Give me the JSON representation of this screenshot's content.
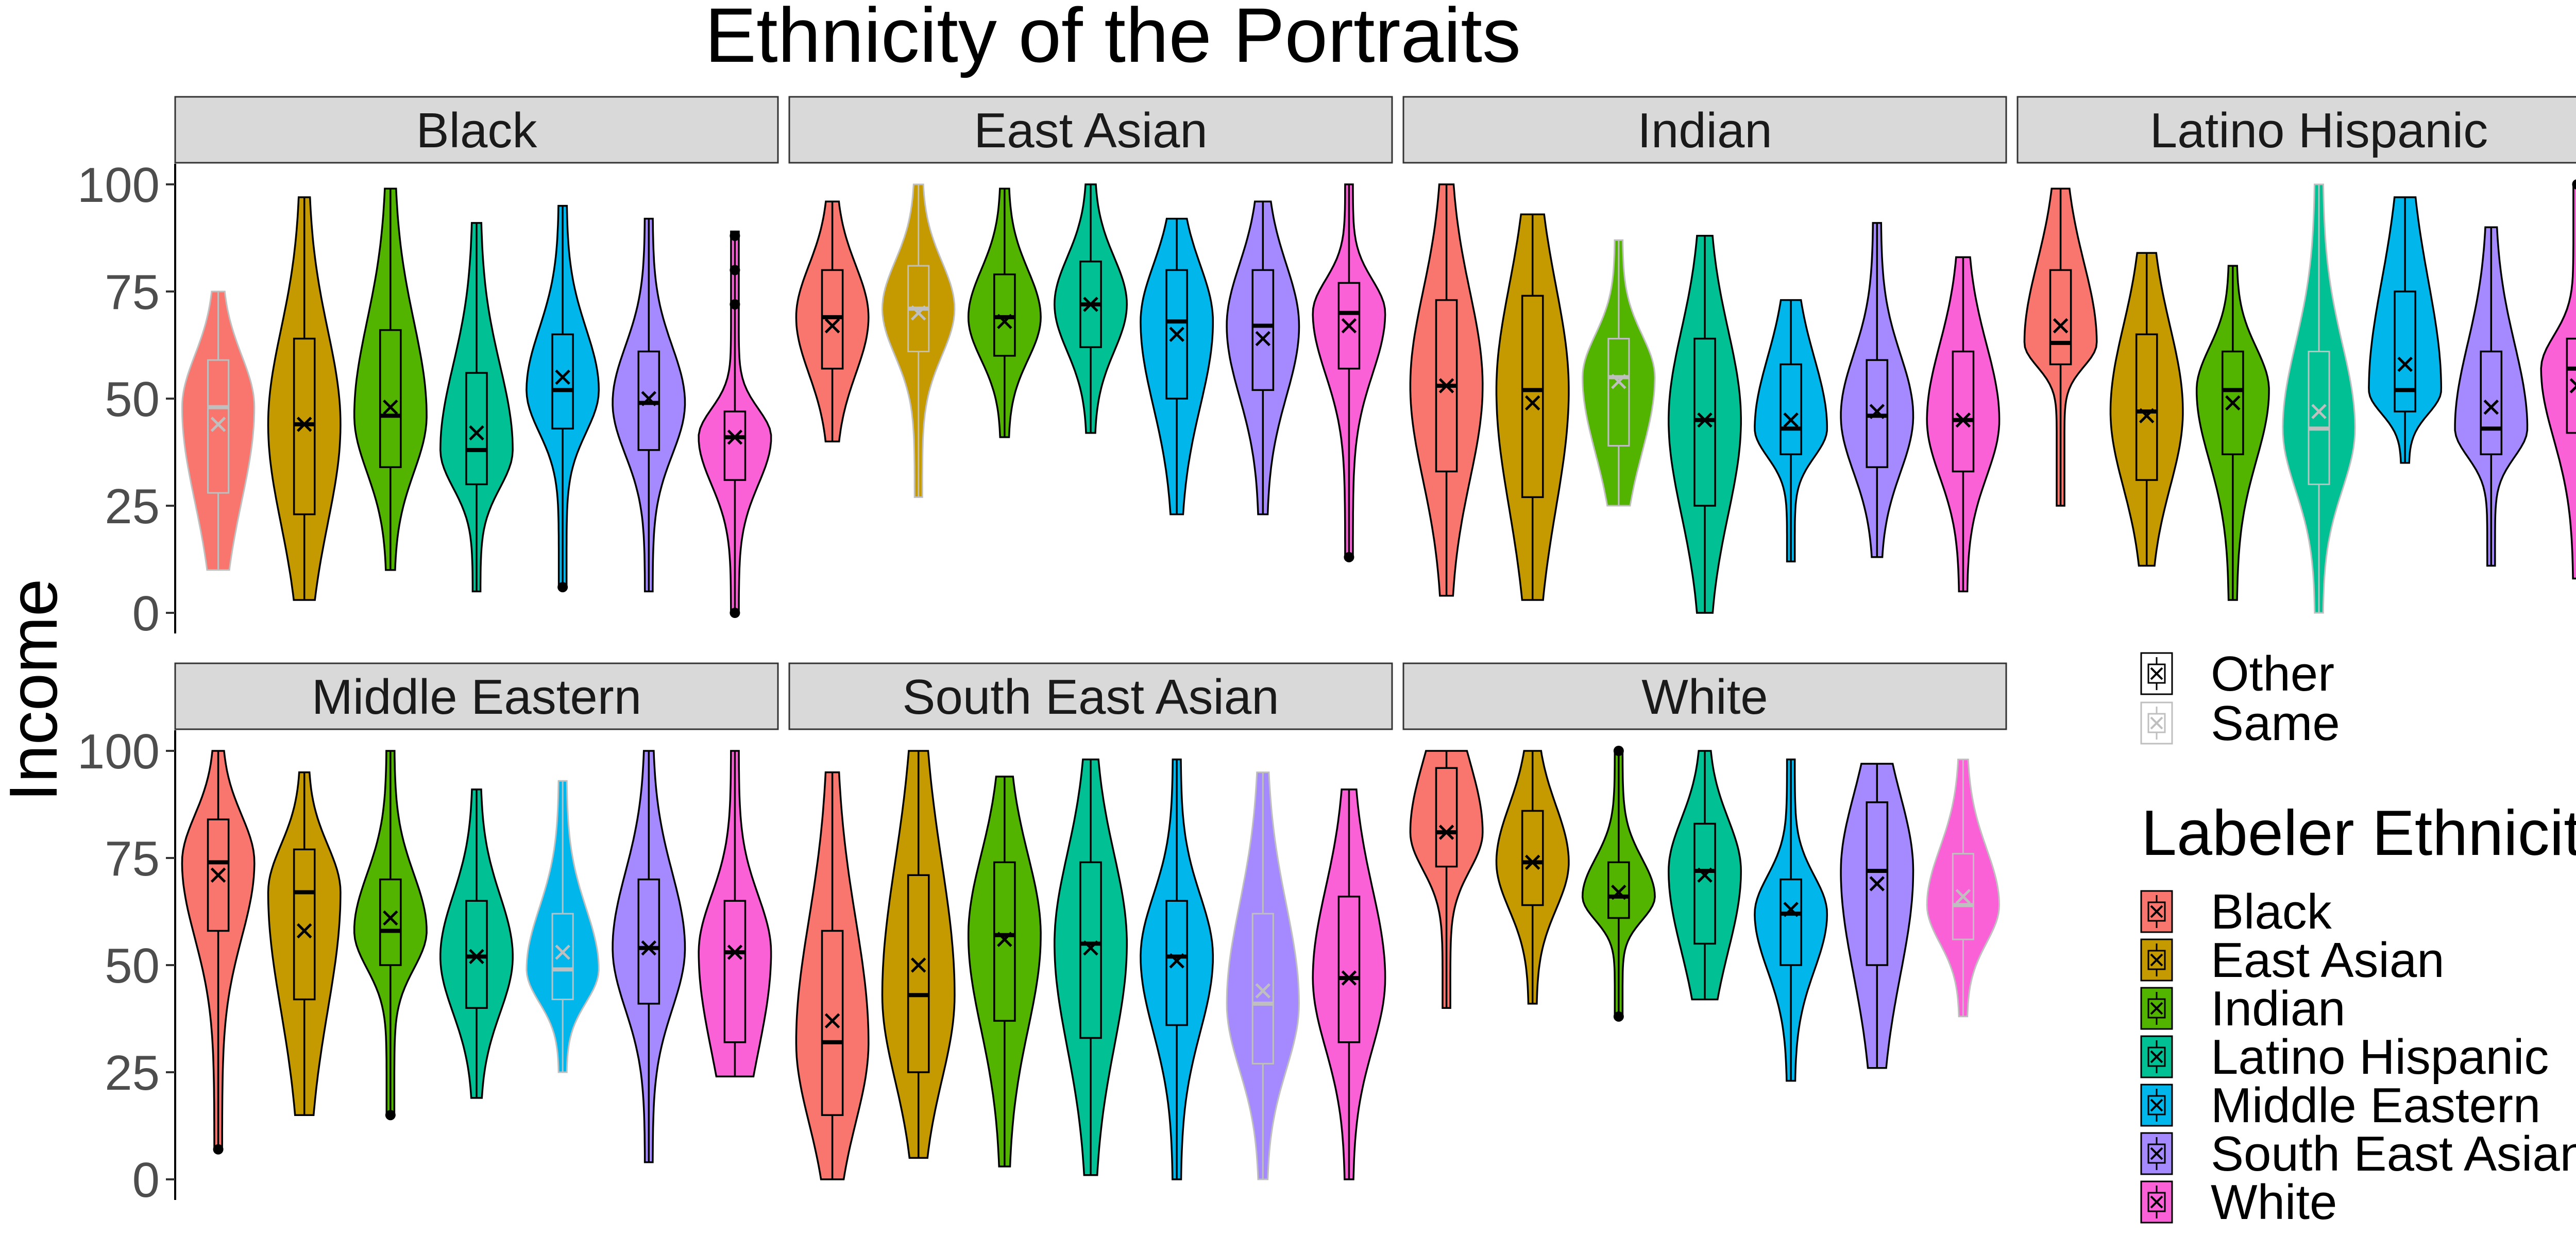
{
  "chart_data": {
    "type": "violin",
    "title": "Ethnicity of the Portraits",
    "ylabel": "Income",
    "xlabel": "",
    "ylim": [
      0,
      100
    ],
    "yticks": [
      0,
      25,
      50,
      75,
      100
    ],
    "ytick_labels": [
      "0",
      "25",
      "50",
      "75",
      "100"
    ],
    "grid": false,
    "legend_position": "right",
    "shape_legend": {
      "entries": [
        {
          "label": "Other",
          "color": "#000000"
        },
        {
          "label": "Same",
          "color": "#bfbfbf"
        }
      ]
    },
    "fill_legend": {
      "title": "Labeler Ethnicity",
      "entries": [
        {
          "label": "Black",
          "color": "#F8766D"
        },
        {
          "label": "East Asian",
          "color": "#C49A00"
        },
        {
          "label": "Indian",
          "color": "#53B400"
        },
        {
          "label": "Latino Hispanic",
          "color": "#00C094"
        },
        {
          "label": "Middle Eastern",
          "color": "#00B6EB"
        },
        {
          "label": "South East Asian",
          "color": "#A58AFF"
        },
        {
          "label": "White",
          "color": "#FB61D7"
        }
      ]
    },
    "panels": [
      {
        "name": "Black",
        "series": [
          {
            "labeler": "Black",
            "group": "Same",
            "min": 10,
            "max": 75,
            "q1": 28,
            "median": 48,
            "q3": 59,
            "mean": 44,
            "outliers": []
          },
          {
            "labeler": "East Asian",
            "group": "Other",
            "min": 3,
            "max": 97,
            "q1": 23,
            "median": 44,
            "q3": 64,
            "mean": 44,
            "outliers": []
          },
          {
            "labeler": "Indian",
            "group": "Other",
            "min": 10,
            "max": 99,
            "q1": 34,
            "median": 46,
            "q3": 66,
            "mean": 48,
            "outliers": []
          },
          {
            "labeler": "Latino Hispanic",
            "group": "Other",
            "min": 5,
            "max": 91,
            "q1": 30,
            "median": 38,
            "q3": 56,
            "mean": 42,
            "outliers": []
          },
          {
            "labeler": "Middle Eastern",
            "group": "Other",
            "min": 6,
            "max": 95,
            "q1": 43,
            "median": 52,
            "q3": 65,
            "mean": 55,
            "outliers": [
              6
            ]
          },
          {
            "labeler": "South East Asian",
            "group": "Other",
            "min": 5,
            "max": 92,
            "q1": 38,
            "median": 49,
            "q3": 61,
            "mean": 50,
            "outliers": []
          },
          {
            "labeler": "White",
            "group": "Other",
            "min": 0,
            "max": 89,
            "q1": 31,
            "median": 41,
            "q3": 47,
            "mean": 41,
            "outliers": [
              0,
              72,
              80,
              88
            ]
          }
        ]
      },
      {
        "name": "East Asian",
        "series": [
          {
            "labeler": "Black",
            "group": "Other",
            "min": 40,
            "max": 96,
            "q1": 57,
            "median": 69,
            "q3": 80,
            "mean": 67,
            "outliers": []
          },
          {
            "labeler": "East Asian",
            "group": "Same",
            "min": 27,
            "max": 100,
            "q1": 61,
            "median": 71,
            "q3": 81,
            "mean": 70,
            "outliers": []
          },
          {
            "labeler": "Indian",
            "group": "Other",
            "min": 41,
            "max": 99,
            "q1": 60,
            "median": 69,
            "q3": 79,
            "mean": 68,
            "outliers": []
          },
          {
            "labeler": "Latino Hispanic",
            "group": "Other",
            "min": 42,
            "max": 100,
            "q1": 62,
            "median": 72,
            "q3": 82,
            "mean": 72,
            "outliers": []
          },
          {
            "labeler": "Middle Eastern",
            "group": "Other",
            "min": 23,
            "max": 92,
            "q1": 50,
            "median": 68,
            "q3": 80,
            "mean": 65,
            "outliers": []
          },
          {
            "labeler": "South East Asian",
            "group": "Other",
            "min": 23,
            "max": 96,
            "q1": 52,
            "median": 67,
            "q3": 80,
            "mean": 64,
            "outliers": []
          },
          {
            "labeler": "White",
            "group": "Other",
            "min": 13,
            "max": 100,
            "q1": 57,
            "median": 70,
            "q3": 77,
            "mean": 67,
            "outliers": [
              13
            ]
          }
        ]
      },
      {
        "name": "Indian",
        "series": [
          {
            "labeler": "Black",
            "group": "Other",
            "min": 4,
            "max": 100,
            "q1": 33,
            "median": 53,
            "q3": 73,
            "mean": 53,
            "outliers": []
          },
          {
            "labeler": "East Asian",
            "group": "Other",
            "min": 3,
            "max": 93,
            "q1": 27,
            "median": 52,
            "q3": 74,
            "mean": 49,
            "outliers": []
          },
          {
            "labeler": "Indian",
            "group": "Same",
            "min": 25,
            "max": 87,
            "q1": 39,
            "median": 55,
            "q3": 64,
            "mean": 54,
            "outliers": []
          },
          {
            "labeler": "Latino Hispanic",
            "group": "Other",
            "min": 0,
            "max": 88,
            "q1": 25,
            "median": 45,
            "q3": 64,
            "mean": 45,
            "outliers": []
          },
          {
            "labeler": "Middle Eastern",
            "group": "Other",
            "min": 12,
            "max": 73,
            "q1": 37,
            "median": 43,
            "q3": 58,
            "mean": 45,
            "outliers": []
          },
          {
            "labeler": "South East Asian",
            "group": "Other",
            "min": 13,
            "max": 91,
            "q1": 34,
            "median": 46,
            "q3": 59,
            "mean": 47,
            "outliers": []
          },
          {
            "labeler": "White",
            "group": "Other",
            "min": 5,
            "max": 83,
            "q1": 33,
            "median": 45,
            "q3": 61,
            "mean": 45,
            "outliers": []
          }
        ]
      },
      {
        "name": "Latino Hispanic",
        "series": [
          {
            "labeler": "Black",
            "group": "Other",
            "min": 25,
            "max": 99,
            "q1": 58,
            "median": 63,
            "q3": 80,
            "mean": 67,
            "outliers": []
          },
          {
            "labeler": "East Asian",
            "group": "Other",
            "min": 11,
            "max": 84,
            "q1": 31,
            "median": 47,
            "q3": 65,
            "mean": 46,
            "outliers": []
          },
          {
            "labeler": "Indian",
            "group": "Other",
            "min": 3,
            "max": 81,
            "q1": 37,
            "median": 52,
            "q3": 61,
            "mean": 49,
            "outliers": []
          },
          {
            "labeler": "Latino Hispanic",
            "group": "Same",
            "min": 0,
            "max": 100,
            "q1": 30,
            "median": 43,
            "q3": 61,
            "mean": 47,
            "outliers": []
          },
          {
            "labeler": "Middle Eastern",
            "group": "Other",
            "min": 35,
            "max": 97,
            "q1": 47,
            "median": 52,
            "q3": 75,
            "mean": 58,
            "outliers": []
          },
          {
            "labeler": "South East Asian",
            "group": "Other",
            "min": 11,
            "max": 90,
            "q1": 37,
            "median": 43,
            "q3": 61,
            "mean": 48,
            "outliers": []
          },
          {
            "labeler": "White",
            "group": "Other",
            "min": 8,
            "max": 100,
            "q1": 42,
            "median": 57,
            "q3": 64,
            "mean": 53,
            "outliers": [
              100
            ]
          }
        ]
      },
      {
        "name": "Middle Eastern",
        "series": [
          {
            "labeler": "Black",
            "group": "Other",
            "min": 7,
            "max": 100,
            "q1": 58,
            "median": 74,
            "q3": 84,
            "mean": 71,
            "outliers": [
              7
            ]
          },
          {
            "labeler": "East Asian",
            "group": "Other",
            "min": 15,
            "max": 95,
            "q1": 42,
            "median": 67,
            "q3": 77,
            "mean": 58,
            "outliers": []
          },
          {
            "labeler": "Indian",
            "group": "Other",
            "min": 15,
            "max": 100,
            "q1": 50,
            "median": 58,
            "q3": 70,
            "mean": 61,
            "outliers": [
              15
            ]
          },
          {
            "labeler": "Latino Hispanic",
            "group": "Other",
            "min": 19,
            "max": 91,
            "q1": 40,
            "median": 52,
            "q3": 65,
            "mean": 52,
            "outliers": []
          },
          {
            "labeler": "Middle Eastern",
            "group": "Same",
            "min": 25,
            "max": 93,
            "q1": 42,
            "median": 49,
            "q3": 62,
            "mean": 53,
            "outliers": []
          },
          {
            "labeler": "South East Asian",
            "group": "Other",
            "min": 4,
            "max": 100,
            "q1": 41,
            "median": 54,
            "q3": 70,
            "mean": 54,
            "outliers": []
          },
          {
            "labeler": "White",
            "group": "Other",
            "min": 24,
            "max": 100,
            "q1": 32,
            "median": 53,
            "q3": 65,
            "mean": 53,
            "outliers": []
          }
        ]
      },
      {
        "name": "South East Asian",
        "series": [
          {
            "labeler": "Black",
            "group": "Other",
            "min": 0,
            "max": 95,
            "q1": 15,
            "median": 32,
            "q3": 58,
            "mean": 37,
            "outliers": []
          },
          {
            "labeler": "East Asian",
            "group": "Other",
            "min": 5,
            "max": 100,
            "q1": 25,
            "median": 43,
            "q3": 71,
            "mean": 50,
            "outliers": []
          },
          {
            "labeler": "Indian",
            "group": "Other",
            "min": 3,
            "max": 94,
            "q1": 37,
            "median": 57,
            "q3": 74,
            "mean": 56,
            "outliers": []
          },
          {
            "labeler": "Latino Hispanic",
            "group": "Other",
            "min": 1,
            "max": 98,
            "q1": 33,
            "median": 55,
            "q3": 74,
            "mean": 54,
            "outliers": []
          },
          {
            "labeler": "Middle Eastern",
            "group": "Other",
            "min": 0,
            "max": 98,
            "q1": 36,
            "median": 52,
            "q3": 65,
            "mean": 51,
            "outliers": []
          },
          {
            "labeler": "South East Asian",
            "group": "Same",
            "min": 0,
            "max": 95,
            "q1": 27,
            "median": 41,
            "q3": 62,
            "mean": 44,
            "outliers": []
          },
          {
            "labeler": "White",
            "group": "Other",
            "min": 0,
            "max": 91,
            "q1": 32,
            "median": 47,
            "q3": 66,
            "mean": 47,
            "outliers": []
          }
        ]
      },
      {
        "name": "White",
        "series": [
          {
            "labeler": "Black",
            "group": "Other",
            "min": 40,
            "max": 100,
            "q1": 73,
            "median": 81,
            "q3": 96,
            "mean": 81,
            "outliers": []
          },
          {
            "labeler": "East Asian",
            "group": "Other",
            "min": 41,
            "max": 100,
            "q1": 64,
            "median": 74,
            "q3": 86,
            "mean": 74,
            "outliers": []
          },
          {
            "labeler": "Indian",
            "group": "Other",
            "min": 38,
            "max": 100,
            "q1": 61,
            "median": 66,
            "q3": 74,
            "mean": 67,
            "outliers": [
              38,
              100
            ]
          },
          {
            "labeler": "Latino Hispanic",
            "group": "Other",
            "min": 42,
            "max": 100,
            "q1": 55,
            "median": 72,
            "q3": 83,
            "mean": 71,
            "outliers": []
          },
          {
            "labeler": "Middle Eastern",
            "group": "Other",
            "min": 23,
            "max": 98,
            "q1": 50,
            "median": 62,
            "q3": 70,
            "mean": 63,
            "outliers": []
          },
          {
            "labeler": "South East Asian",
            "group": "Other",
            "min": 26,
            "max": 97,
            "q1": 50,
            "median": 72,
            "q3": 88,
            "mean": 69,
            "outliers": []
          },
          {
            "labeler": "White",
            "group": "Same",
            "min": 38,
            "max": 98,
            "q1": 56,
            "median": 64,
            "q3": 76,
            "mean": 66,
            "outliers": []
          }
        ]
      }
    ]
  }
}
